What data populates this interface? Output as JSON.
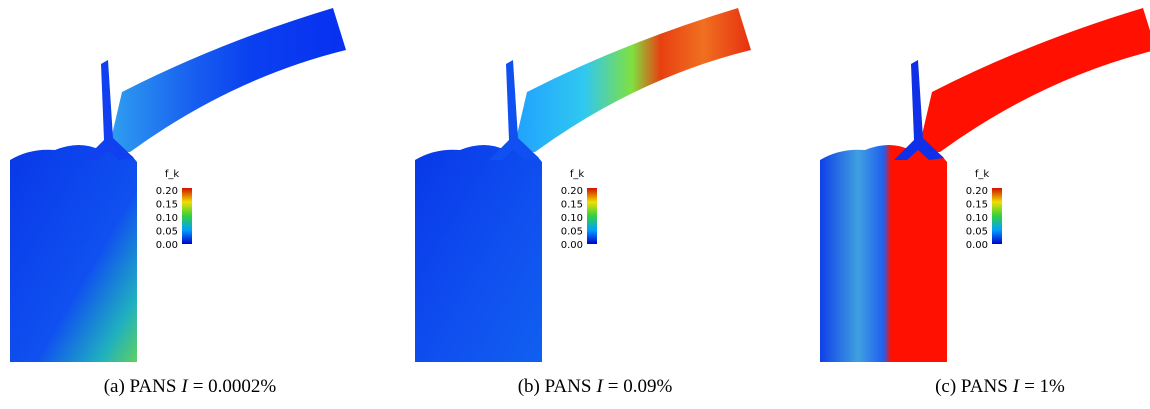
{
  "panels": [
    {
      "colorbar": {
        "title": "f_k",
        "ticks": [
          "0.20",
          "0.15",
          "0.10",
          "0.05",
          "0.00"
        ]
      },
      "caption": {
        "prefix": "(a) PANS",
        "variable": "I",
        "value": "= 0.0002%"
      }
    },
    {
      "colorbar": {
        "title": "f_k",
        "ticks": [
          "0.20",
          "0.15",
          "0.10",
          "0.05",
          "0.00"
        ]
      },
      "caption": {
        "prefix": "(b) PANS",
        "variable": "I",
        "value": "= 0.09%"
      }
    },
    {
      "colorbar": {
        "title": "f_k",
        "ticks": [
          "0.20",
          "0.15",
          "0.10",
          "0.05",
          "0.00"
        ]
      },
      "caption": {
        "prefix": "(c) PANS",
        "variable": "I",
        "value": "= 1%"
      }
    }
  ]
}
